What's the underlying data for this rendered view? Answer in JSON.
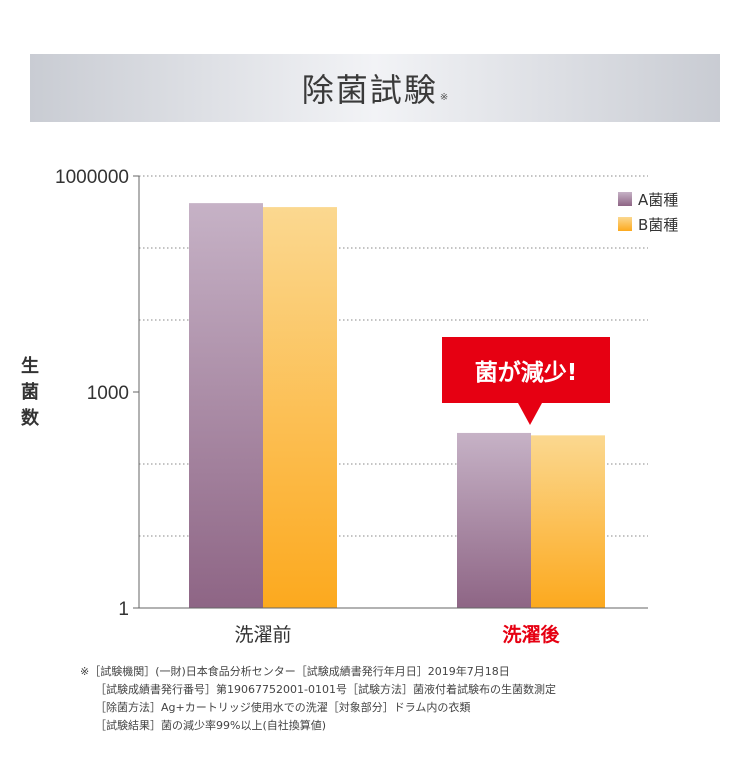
{
  "header": {
    "title": "除菌試験",
    "mark": "※"
  },
  "callout": {
    "text": "菌が減少!"
  },
  "footnotes": [
    "※［試験機関］(一財)日本食品分析センター［試験成績書発行年月日］2019年7月18日",
    "［試験成績書発行番号］第19067752001-0101号［試験方法］菌液付着試験布の生菌数測定",
    "［除菌方法］Ag+カートリッジ使用水での洗濯［対象部分］ドラム内の衣類",
    "［試験結果］菌の減少率99%以上(自社換算値)"
  ],
  "colors": {
    "series_a_top": "#c6b2c6",
    "series_a_bottom": "#8e6585",
    "series_b_top": "#fbd890",
    "series_b_bottom": "#fca91e",
    "after_label": "#e60012",
    "before_label": "#333333"
  },
  "chart_data": {
    "type": "bar",
    "scale": "log",
    "ylabel": "生菌数",
    "ylim": [
      1,
      1000000
    ],
    "yticks": [
      {
        "value": 1,
        "label": "1"
      },
      {
        "value": 1000,
        "label": "1000"
      },
      {
        "value": 1000000,
        "label": "1000000"
      }
    ],
    "minor_gridlines": [
      10,
      100,
      10000,
      100000,
      1000000
    ],
    "categories": [
      "洗濯前",
      "洗濯後"
    ],
    "series": [
      {
        "name": "A菌種",
        "values": [
          420000,
          270
        ]
      },
      {
        "name": "B菌種",
        "values": [
          370000,
          250
        ]
      }
    ],
    "legend_position": "top-right"
  }
}
